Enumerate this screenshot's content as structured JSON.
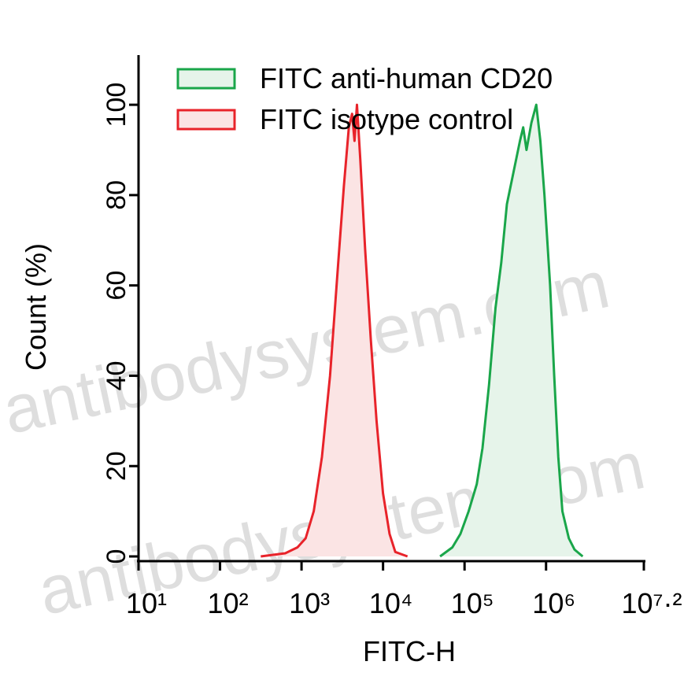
{
  "chart_data": {
    "type": "histogram-overlay",
    "watermark": "antibodysystem.com",
    "xlabel": "FITC-H",
    "ylabel": "Count (%)",
    "xscale": "log",
    "xlim": [
      10,
      15848932
    ],
    "ylim": [
      0,
      111
    ],
    "xticks": [
      {
        "value": 10,
        "label": "10¹"
      },
      {
        "value": 100,
        "label": "10²"
      },
      {
        "value": 1000,
        "label": "10³"
      },
      {
        "value": 10000,
        "label": "10⁴"
      },
      {
        "value": 100000,
        "label": "10⁵"
      },
      {
        "value": 1000000,
        "label": "10⁶"
      },
      {
        "value": 15848932,
        "label": "10⁷·²"
      }
    ],
    "yticks": [
      0,
      20,
      40,
      60,
      80,
      100
    ],
    "legend": "top-left",
    "series": [
      {
        "name": "FITC anti-human CD20",
        "color": "#1aa64a",
        "fill": "#e6f4ea",
        "x": [
          50119,
          70795,
          89125,
          112202,
          141254,
          165959,
          199526,
          239883,
          281838,
          331131,
          398107,
          478630,
          524807,
          575440,
          660693,
          758578,
          851138,
          954993,
          1122018,
          1258925,
          1412538,
          1584893,
          1905461,
          2238721,
          2818383
        ],
        "values": [
          0,
          2,
          5,
          10,
          16,
          24,
          38,
          55,
          65,
          78,
          85,
          92,
          95,
          90,
          96,
          100,
          92,
          80,
          60,
          40,
          22,
          10,
          4,
          1.5,
          0
        ]
      },
      {
        "name": "FITC isotype control",
        "color": "#e8232a",
        "fill": "#fbe4e4",
        "x": [
          316,
          631,
          891,
          1122,
          1413,
          1778,
          2239,
          2818,
          3311,
          3802,
          4169,
          4467,
          4786,
          5248,
          6026,
          7079,
          8318,
          10000,
          12023,
          14125,
          19953
        ],
        "values": [
          0,
          0.7,
          2,
          4,
          10,
          22,
          40,
          65,
          82,
          95,
          98,
          92,
          100,
          88,
          68,
          48,
          30,
          14,
          5,
          1,
          0
        ]
      }
    ]
  }
}
